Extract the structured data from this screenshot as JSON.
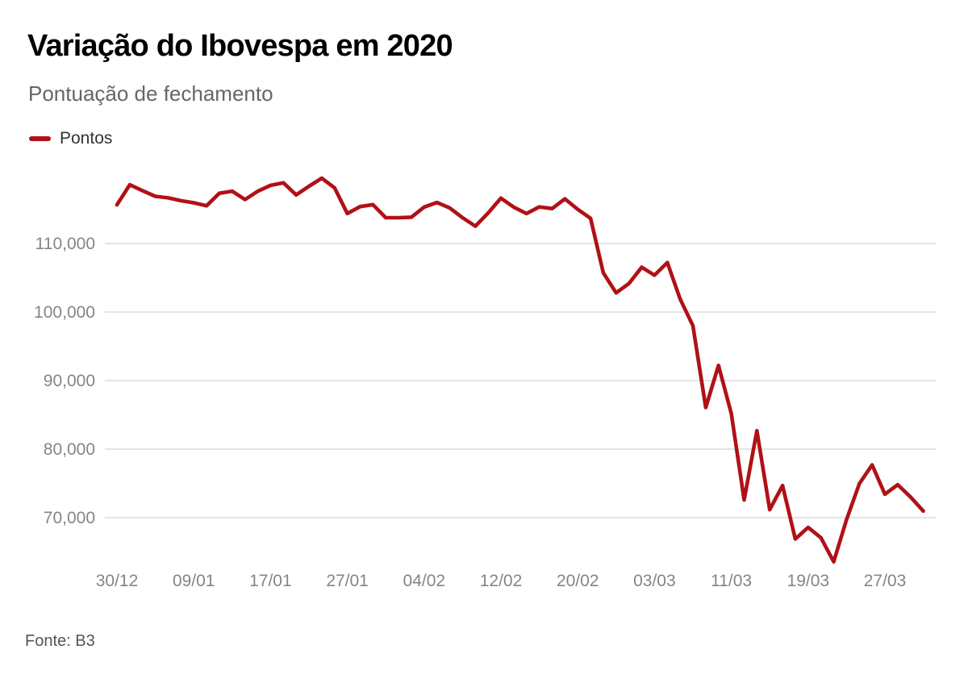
{
  "header": {
    "title": "Variação do Ibovespa em 2020",
    "subtitle": "Pontuação de fechamento"
  },
  "legend": {
    "items": [
      {
        "label": "Pontos",
        "color": "#b01116"
      }
    ]
  },
  "footer": {
    "source": "Fonte: B3"
  },
  "colors": {
    "line_red": "#b01116",
    "gridline": "#dcdcdc",
    "axis_text": "#858585",
    "title_text": "#000000",
    "subtitle_text": "#666666"
  },
  "chart_data": {
    "type": "line",
    "title": "Variação do Ibovespa em 2020",
    "subtitle": "Pontuação de fechamento",
    "legend_position": "top-left",
    "grid": "horizontal-only",
    "ylim": [
      62000,
      121000
    ],
    "yticks": [
      110000,
      100000,
      90000,
      80000,
      70000
    ],
    "ytick_labels": [
      "110,000",
      "100,000",
      "90,000",
      "80,000",
      "70,000"
    ],
    "xtick_labels": [
      "30/12",
      "09/01",
      "17/01",
      "27/01",
      "04/02",
      "12/02",
      "20/02",
      "03/03",
      "11/03",
      "19/03",
      "27/03"
    ],
    "series": [
      {
        "name": "Pontos",
        "color": "#b01116",
        "x": [
          "30/12",
          "02/01",
          "03/01",
          "06/01",
          "07/01",
          "08/01",
          "09/01",
          "10/01",
          "13/01",
          "14/01",
          "15/01",
          "16/01",
          "17/01",
          "20/01",
          "21/01",
          "22/01",
          "23/01",
          "24/01",
          "27/01",
          "28/01",
          "29/01",
          "30/01",
          "31/01",
          "03/02",
          "04/02",
          "05/02",
          "06/02",
          "07/02",
          "10/02",
          "11/02",
          "12/02",
          "13/02",
          "14/02",
          "17/02",
          "18/02",
          "19/02",
          "20/02",
          "21/02",
          "26/02",
          "27/02",
          "28/02",
          "02/03",
          "03/03",
          "04/03",
          "05/03",
          "06/03",
          "09/03",
          "10/03",
          "11/03",
          "12/03",
          "13/03",
          "16/03",
          "17/03",
          "18/03",
          "19/03",
          "20/03",
          "23/03",
          "24/03",
          "25/03",
          "26/03",
          "27/03",
          "30/03",
          "31/03",
          "01/04"
        ],
        "values": [
          115645,
          118573,
          117707,
          116878,
          116662,
          116247,
          115947,
          115503,
          117325,
          117632,
          116414,
          117626,
          118478,
          118860,
          117100,
          118350,
          119528,
          118132,
          114382,
          115384,
          115671,
          113767,
          113761,
          113839,
          115320,
          115985,
          115190,
          113770,
          112530,
          114450,
          116620,
          115310,
          114381,
          115347,
          115095,
          116517,
          114988,
          113681,
          105718,
          102800,
          104170,
          106540,
          105380,
          107220,
          101920,
          97996,
          86067,
          92214,
          85171,
          72583,
          82678,
          71168,
          74682,
          66895,
          68580,
          67069,
          63570,
          69700,
          74950,
          77709,
          73428,
          74810,
          73020,
          70967
        ]
      }
    ],
    "source": "Fonte: B3"
  }
}
